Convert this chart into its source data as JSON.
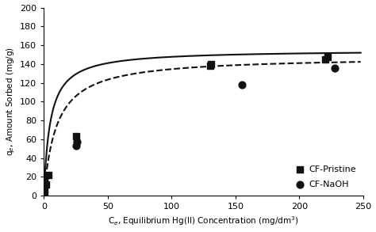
{
  "pristine_x": [
    0.2,
    0.5,
    1.5,
    3.5,
    25.0,
    130.0,
    131.0,
    220.0,
    222.0
  ],
  "pristine_y": [
    1.0,
    7.0,
    12.0,
    22.0,
    63.0,
    138.0,
    140.0,
    145.0,
    147.0
  ],
  "naoh_x": [
    0.5,
    25.0,
    26.0,
    155.0,
    228.0
  ],
  "naoh_y": [
    18.0,
    53.0,
    57.0,
    118.0,
    136.0
  ],
  "langmuir_pristine_qmax": 155.0,
  "langmuir_pristine_KL": 0.2,
  "langmuir_naoh_qmax": 148.0,
  "langmuir_naoh_KL": 0.1,
  "xlim": [
    0,
    250
  ],
  "ylim": [
    0,
    200
  ],
  "xticks": [
    0,
    50,
    100,
    150,
    200,
    250
  ],
  "yticks": [
    0,
    20,
    40,
    60,
    80,
    100,
    120,
    140,
    160,
    180,
    200
  ],
  "xlabel": "C$_{e}$, Equilibrium Hg(II) Concentration (mg/dm$^{3}$)",
  "ylabel": "q$_{e}$, Amount Sorbed (mg/g)",
  "legend_labels": [
    "CF-Pristine",
    "CF-NaOH"
  ],
  "marker_color": "#111111",
  "line_color": "#111111",
  "background_color": "#ffffff",
  "figsize": [
    4.74,
    2.93
  ],
  "dpi": 100
}
